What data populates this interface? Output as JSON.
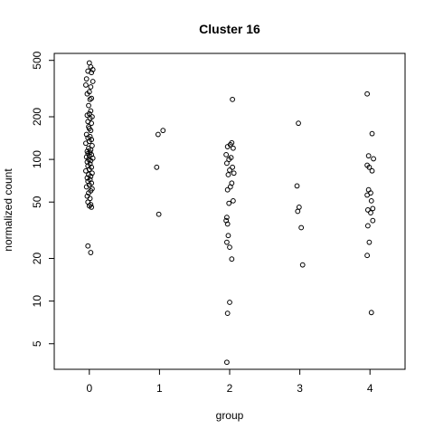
{
  "chart_data": {
    "type": "scatter",
    "title": "Cluster 16",
    "xlabel": "group",
    "ylabel": "normalized count",
    "x_ticks": [
      0,
      1,
      2,
      3,
      4
    ],
    "y_scale": "log",
    "y_ticks": [
      5,
      10,
      20,
      50,
      100,
      200,
      500
    ],
    "xlim": [
      -0.5,
      4.5
    ],
    "ylim": [
      3.3,
      560
    ],
    "grid": false,
    "legend": "none",
    "marker": "open-circle",
    "points": [
      {
        "x": 0.0,
        "y": 480
      },
      {
        "x": 0.02,
        "y": 450
      },
      {
        "x": 0.05,
        "y": 430
      },
      {
        "x": -0.02,
        "y": 420
      },
      {
        "x": 0.03,
        "y": 410
      },
      {
        "x": -0.04,
        "y": 370
      },
      {
        "x": 0.05,
        "y": 355
      },
      {
        "x": -0.05,
        "y": 335
      },
      {
        "x": 0.02,
        "y": 325
      },
      {
        "x": 0.0,
        "y": 300
      },
      {
        "x": -0.03,
        "y": 290
      },
      {
        "x": 0.03,
        "y": 270
      },
      {
        "x": 0.01,
        "y": 265
      },
      {
        "x": -0.01,
        "y": 240
      },
      {
        "x": 0.02,
        "y": 220
      },
      {
        "x": 0.0,
        "y": 210
      },
      {
        "x": -0.03,
        "y": 205
      },
      {
        "x": 0.04,
        "y": 200
      },
      {
        "x": 0.01,
        "y": 195
      },
      {
        "x": -0.02,
        "y": 185
      },
      {
        "x": 0.03,
        "y": 180
      },
      {
        "x": -0.01,
        "y": 170
      },
      {
        "x": 0.0,
        "y": 165
      },
      {
        "x": 0.02,
        "y": 160
      },
      {
        "x": -0.04,
        "y": 150
      },
      {
        "x": 0.01,
        "y": 145
      },
      {
        "x": -0.02,
        "y": 142
      },
      {
        "x": 0.03,
        "y": 138
      },
      {
        "x": 0.0,
        "y": 134
      },
      {
        "x": -0.05,
        "y": 130
      },
      {
        "x": 0.04,
        "y": 125
      },
      {
        "x": -0.01,
        "y": 120
      },
      {
        "x": 0.02,
        "y": 117
      },
      {
        "x": -0.03,
        "y": 114
      },
      {
        "x": 0.01,
        "y": 112
      },
      {
        "x": -0.02,
        "y": 110
      },
      {
        "x": 0.03,
        "y": 108
      },
      {
        "x": 0.0,
        "y": 106
      },
      {
        "x": -0.04,
        "y": 104
      },
      {
        "x": 0.05,
        "y": 102
      },
      {
        "x": -0.01,
        "y": 100
      },
      {
        "x": 0.02,
        "y": 98
      },
      {
        "x": -0.03,
        "y": 96
      },
      {
        "x": 0.01,
        "y": 93
      },
      {
        "x": -0.02,
        "y": 90
      },
      {
        "x": 0.03,
        "y": 88
      },
      {
        "x": 0.0,
        "y": 85
      },
      {
        "x": -0.05,
        "y": 83
      },
      {
        "x": 0.04,
        "y": 80
      },
      {
        "x": -0.01,
        "y": 78
      },
      {
        "x": 0.02,
        "y": 76
      },
      {
        "x": -0.03,
        "y": 74
      },
      {
        "x": 0.01,
        "y": 72
      },
      {
        "x": -0.02,
        "y": 70
      },
      {
        "x": 0.03,
        "y": 68
      },
      {
        "x": 0.0,
        "y": 66
      },
      {
        "x": -0.04,
        "y": 64
      },
      {
        "x": 0.04,
        "y": 62
      },
      {
        "x": 0.02,
        "y": 60
      },
      {
        "x": -0.01,
        "y": 58
      },
      {
        "x": -0.03,
        "y": 55
      },
      {
        "x": 0.01,
        "y": 53
      },
      {
        "x": -0.02,
        "y": 50
      },
      {
        "x": 0.02,
        "y": 48
      },
      {
        "x": 0.0,
        "y": 47
      },
      {
        "x": 0.03,
        "y": 46
      },
      {
        "x": -0.02,
        "y": 24.5
      },
      {
        "x": 0.02,
        "y": 22
      },
      {
        "x": 0.98,
        "y": 150
      },
      {
        "x": 1.05,
        "y": 160
      },
      {
        "x": 0.96,
        "y": 88
      },
      {
        "x": 0.99,
        "y": 41
      },
      {
        "x": 2.04,
        "y": 265
      },
      {
        "x": 2.03,
        "y": 131
      },
      {
        "x": 2.01,
        "y": 127
      },
      {
        "x": 1.97,
        "y": 123
      },
      {
        "x": 2.05,
        "y": 120
      },
      {
        "x": 1.95,
        "y": 108
      },
      {
        "x": 2.02,
        "y": 103
      },
      {
        "x": 1.99,
        "y": 100
      },
      {
        "x": 1.96,
        "y": 94
      },
      {
        "x": 2.04,
        "y": 88
      },
      {
        "x": 2.0,
        "y": 84
      },
      {
        "x": 2.06,
        "y": 80
      },
      {
        "x": 1.98,
        "y": 78
      },
      {
        "x": 2.03,
        "y": 68
      },
      {
        "x": 2.01,
        "y": 64
      },
      {
        "x": 1.97,
        "y": 61
      },
      {
        "x": 2.05,
        "y": 51
      },
      {
        "x": 1.99,
        "y": 49
      },
      {
        "x": 1.96,
        "y": 39
      },
      {
        "x": 1.95,
        "y": 37
      },
      {
        "x": 1.97,
        "y": 35
      },
      {
        "x": 1.98,
        "y": 29
      },
      {
        "x": 1.96,
        "y": 26
      },
      {
        "x": 2.0,
        "y": 24
      },
      {
        "x": 2.03,
        "y": 19.8
      },
      {
        "x": 2.0,
        "y": 9.8
      },
      {
        "x": 1.97,
        "y": 8.2
      },
      {
        "x": 1.96,
        "y": 3.7
      },
      {
        "x": 2.98,
        "y": 180
      },
      {
        "x": 2.96,
        "y": 65
      },
      {
        "x": 2.99,
        "y": 46
      },
      {
        "x": 2.97,
        "y": 43
      },
      {
        "x": 3.02,
        "y": 33
      },
      {
        "x": 3.04,
        "y": 18
      },
      {
        "x": 3.96,
        "y": 290
      },
      {
        "x": 4.03,
        "y": 152
      },
      {
        "x": 3.98,
        "y": 106
      },
      {
        "x": 4.05,
        "y": 101
      },
      {
        "x": 3.96,
        "y": 91
      },
      {
        "x": 3.99,
        "y": 88
      },
      {
        "x": 4.03,
        "y": 83
      },
      {
        "x": 3.98,
        "y": 61
      },
      {
        "x": 4.01,
        "y": 58
      },
      {
        "x": 3.96,
        "y": 56
      },
      {
        "x": 4.02,
        "y": 51
      },
      {
        "x": 4.04,
        "y": 45
      },
      {
        "x": 3.97,
        "y": 44
      },
      {
        "x": 4.01,
        "y": 42
      },
      {
        "x": 4.04,
        "y": 37
      },
      {
        "x": 3.97,
        "y": 34
      },
      {
        "x": 3.99,
        "y": 26
      },
      {
        "x": 3.96,
        "y": 21
      },
      {
        "x": 4.02,
        "y": 8.3
      }
    ]
  }
}
